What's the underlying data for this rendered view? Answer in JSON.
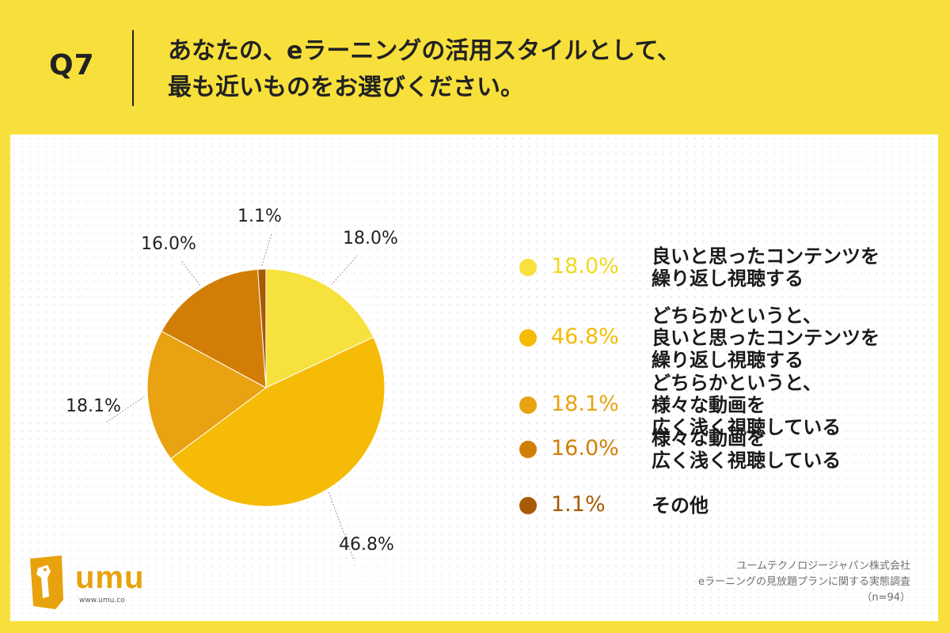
{
  "header": {
    "q_label": "Q7",
    "question_line1": "あなたの、eラーニングの活用スタイルとして、",
    "question_line2": "最も近いものをお選びください。"
  },
  "chart_data": {
    "type": "pie",
    "start": "12 o'clock",
    "direction": "clockwise",
    "slices": [
      {
        "label": "良いと思ったコンテンツを繰り返し視聴する",
        "value": 18.0,
        "display": "18.0%",
        "color": "#F7E13C"
      },
      {
        "label": "どちらかというと、良いと思ったコンテンツを繰り返し視聴する",
        "value": 46.8,
        "display": "46.8%",
        "color": "#F5BB06"
      },
      {
        "label": "どちらかというと、様々な動画を広く浅く視聴している",
        "value": 18.1,
        "display": "18.1%",
        "color": "#E8A212"
      },
      {
        "label": "様々な動画を広く浅く視聴している",
        "value": 16.0,
        "display": "16.0%",
        "color": "#D27E06"
      },
      {
        "label": "その他",
        "value": 1.1,
        "display": "1.1%",
        "color": "#A85B05"
      }
    ],
    "legend_placement": "right"
  },
  "legend": [
    {
      "pct": "18.0%",
      "lines": [
        "良いと思ったコンテンツを",
        "繰り返し視聴する"
      ],
      "color": "#F7E13C"
    },
    {
      "pct": "46.8%",
      "lines": [
        "どちらかというと、",
        "良いと思ったコンテンツを",
        "繰り返し視聴する"
      ],
      "color": "#F5BB06"
    },
    {
      "pct": "18.1%",
      "lines": [
        "どちらかというと、",
        "様々な動画を",
        "広く浅く視聴している"
      ],
      "color": "#E8A212"
    },
    {
      "pct": "16.0%",
      "lines": [
        "様々な動画を",
        "広く浅く視聴している"
      ],
      "color": "#D27E06"
    },
    {
      "pct": "1.1%",
      "lines": [
        "その他"
      ],
      "color": "#A85B05"
    }
  ],
  "logo": {
    "word": "umu",
    "url": "www.umu.co",
    "icon": "giraffe-logo-icon"
  },
  "footnote": {
    "company": "ユームテクノロジージャパン株式会社",
    "survey": "eラーニングの見放題プランに関する実態調査",
    "sample": "（n=94）"
  }
}
